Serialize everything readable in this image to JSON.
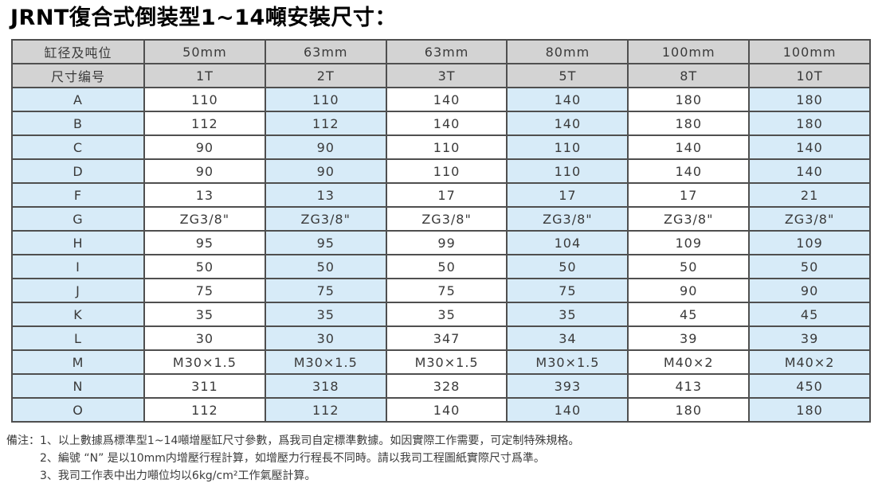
{
  "title": "JRNT復合式倒装型1~14噸安裝尺寸：",
  "table": {
    "header_row1": [
      "缸径及吨位",
      "50mm",
      "63mm",
      "63mm",
      "80mm",
      "100mm",
      "100mm"
    ],
    "header_row2": [
      "尺寸编号",
      "1T",
      "2T",
      "3T",
      "5T",
      "8T",
      "10T"
    ],
    "rows": [
      {
        "label": "A",
        "values": [
          "110",
          "110",
          "140",
          "140",
          "180",
          "180"
        ]
      },
      {
        "label": "B",
        "values": [
          "112",
          "112",
          "140",
          "140",
          "180",
          "180"
        ]
      },
      {
        "label": "C",
        "values": [
          "90",
          "90",
          "110",
          "110",
          "140",
          "140"
        ]
      },
      {
        "label": "D",
        "values": [
          "90",
          "90",
          "110",
          "110",
          "140",
          "140"
        ]
      },
      {
        "label": "F",
        "values": [
          "13",
          "13",
          "17",
          "17",
          "17",
          "21"
        ]
      },
      {
        "label": "G",
        "values": [
          "ZG3/8\"",
          "ZG3/8\"",
          "ZG3/8\"",
          "ZG3/8\"",
          "ZG3/8\"",
          "ZG3/8\""
        ]
      },
      {
        "label": "H",
        "values": [
          "95",
          "95",
          "99",
          "104",
          "109",
          "109"
        ]
      },
      {
        "label": "I",
        "values": [
          "50",
          "50",
          "50",
          "50",
          "50",
          "50"
        ]
      },
      {
        "label": "J",
        "values": [
          "75",
          "75",
          "75",
          "75",
          "90",
          "90"
        ]
      },
      {
        "label": "K",
        "values": [
          "35",
          "35",
          "35",
          "35",
          "45",
          "45"
        ]
      },
      {
        "label": "L",
        "values": [
          "30",
          "30",
          "347",
          "34",
          "39",
          "39"
        ]
      },
      {
        "label": "M",
        "values": [
          "M30×1.5",
          "M30×1.5",
          "M30×1.5",
          "M30×1.5",
          "M40×2",
          "M40×2"
        ]
      },
      {
        "label": "N",
        "values": [
          "311",
          "318",
          "328",
          "393",
          "413",
          "450"
        ]
      },
      {
        "label": "O",
        "values": [
          "112",
          "112",
          "140",
          "140",
          "180",
          "180"
        ]
      }
    ]
  },
  "notes": {
    "label": "備注：",
    "items": [
      "1、以上數據爲標準型1~14噸增壓缸尺寸參數，爲我司自定標準數據。如因實際工作需要，可定制特殊規格。",
      "2、編號 “N” 是以10mm内增壓行程計算，如增壓力行程長不同時。請以我司工程圖紙實際尺寸爲準。",
      "3、我司工作表中出力噸位均以6kg/cm²工作氣壓計算。"
    ]
  },
  "colors": {
    "header_bg": "#d3d3d3",
    "cell_blue": "#d7ebf8",
    "cell_white": "#ffffff",
    "border": "#4f4f4f",
    "text": "#3a3a3a",
    "title_text": "#000000"
  }
}
